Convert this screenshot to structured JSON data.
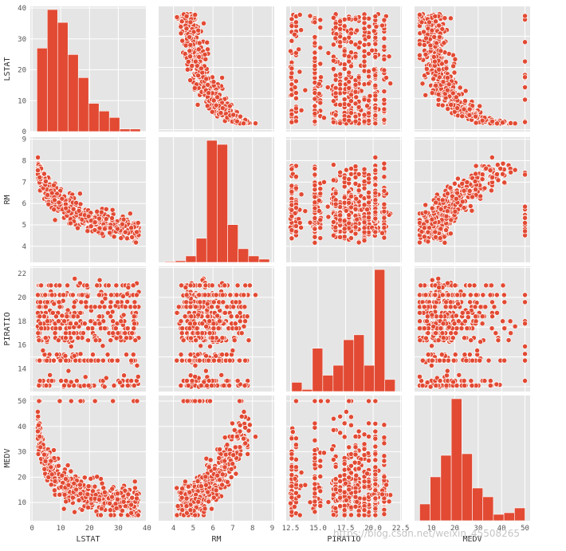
{
  "chart_data": {
    "type": "pairplot",
    "variables": [
      "LSTAT",
      "RM",
      "PIRATIO",
      "MEDV"
    ],
    "style": "ggplot",
    "grid": true,
    "colors": {
      "bar": "#e24a33",
      "point": "#e24a33",
      "point_edge": "#ffffff",
      "panel_bg": "#e5e5e5",
      "grid": "#ffffff"
    },
    "ticks": {
      "LSTAT": {
        "range": [
          1,
          38
        ],
        "values": [
          0,
          10,
          20,
          30,
          40
        ],
        "labels": [
          "0",
          "10",
          "20",
          "30",
          "40"
        ]
      },
      "RM": {
        "range": [
          3.5,
          8.9
        ],
        "values": [
          4,
          5,
          6,
          7,
          8,
          9
        ],
        "labels": [
          "4",
          "5",
          "6",
          "7",
          "8",
          "9"
        ]
      },
      "PIRATIO": {
        "range": [
          12.5,
          22.2
        ],
        "values": [
          12.5,
          15.0,
          17.5,
          20.0,
          22.5
        ],
        "labels": [
          "12.5",
          "15.0",
          "17.5",
          "20.0",
          "22.5"
        ]
      },
      "MEDV": {
        "range": [
          5,
          50
        ],
        "values": [
          10,
          20,
          30,
          40,
          50
        ],
        "labels": [
          "10",
          "20",
          "30",
          "40",
          "50"
        ]
      }
    },
    "axis_limits": {
      "LSTAT": [
        -0.6,
        39.6
      ],
      "RM": [
        3.25,
        9.1
      ],
      "PIRATIO": [
        12.1,
        22.6
      ],
      "MEDV": [
        2.8,
        52.2
      ]
    },
    "histograms": {
      "LSTAT": {
        "edges": [
          1.7,
          5.3,
          8.9,
          12.5,
          16.1,
          19.7,
          23.3,
          26.9,
          30.5,
          34.1,
          37.7
        ],
        "counts": [
          65,
          95,
          85,
          60,
          42,
          22,
          16,
          11,
          2,
          2
        ]
      },
      "RM": {
        "edges": [
          3.56,
          4.09,
          4.62,
          5.15,
          5.68,
          6.21,
          6.74,
          7.27,
          7.8,
          8.33,
          8.86
        ],
        "counts": [
          1,
          2,
          8,
          30,
          152,
          147,
          47,
          17,
          8,
          4
        ]
      },
      "PIRATIO": {
        "edges": [
          12.6,
          13.54,
          14.48,
          15.42,
          16.36,
          17.3,
          18.24,
          19.18,
          20.12,
          21.06,
          22.0
        ],
        "counts": [
          13,
          3,
          61,
          23,
          37,
          73,
          80,
          37,
          172,
          17
        ]
      },
      "MEDV": {
        "edges": [
          5,
          9.5,
          14,
          18.5,
          23,
          27.5,
          32,
          36.5,
          41,
          45.5,
          50
        ],
        "counts": [
          21,
          55,
          82,
          153,
          84,
          41,
          30,
          8,
          10,
          16
        ]
      }
    }
  },
  "watermark": "https://blog.csdn.net/weixin_45508265"
}
